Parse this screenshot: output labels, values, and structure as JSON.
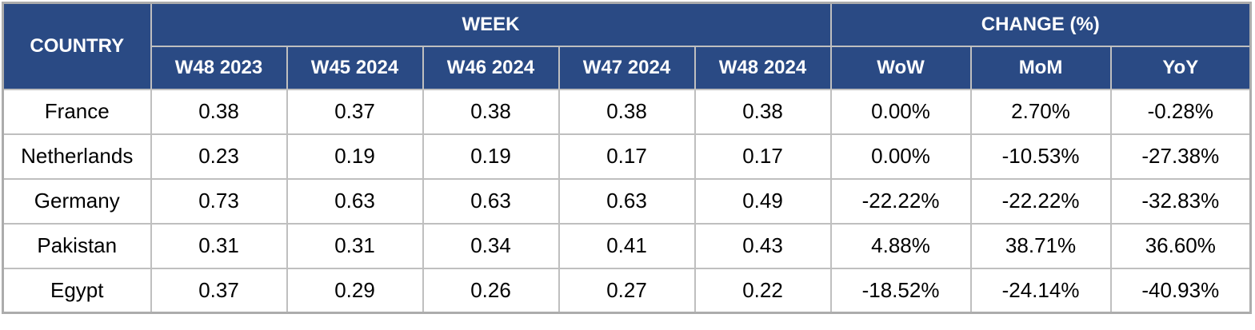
{
  "table": {
    "header": {
      "country": "COUNTRY",
      "week_group": "WEEK",
      "change_group": "CHANGE (%)",
      "week_cols": [
        "W48 2023",
        "W45 2024",
        "W46 2024",
        "W47 2024",
        "W48 2024"
      ],
      "change_cols": [
        "WoW",
        "MoM",
        "YoY"
      ]
    },
    "rows": [
      {
        "country": "France",
        "weeks": [
          "0.38",
          "0.37",
          "0.38",
          "0.38",
          "0.38"
        ],
        "changes": [
          "0.00%",
          "2.70%",
          "-0.28%"
        ]
      },
      {
        "country": "Netherlands",
        "weeks": [
          "0.23",
          "0.19",
          "0.19",
          "0.17",
          "0.17"
        ],
        "changes": [
          "0.00%",
          "-10.53%",
          "-27.38%"
        ]
      },
      {
        "country": "Germany",
        "weeks": [
          "0.73",
          "0.63",
          "0.63",
          "0.63",
          "0.49"
        ],
        "changes": [
          "-22.22%",
          "-22.22%",
          "-32.83%"
        ]
      },
      {
        "country": "Pakistan",
        "weeks": [
          "0.31",
          "0.31",
          "0.34",
          "0.41",
          "0.43"
        ],
        "changes": [
          "4.88%",
          "38.71%",
          "36.60%"
        ]
      },
      {
        "country": "Egypt",
        "weeks": [
          "0.37",
          "0.29",
          "0.26",
          "0.27",
          "0.22"
        ],
        "changes": [
          "-18.52%",
          "-24.14%",
          "-40.93%"
        ]
      }
    ]
  },
  "colors": {
    "header_bg": "#2A4A84",
    "header_text": "#FFFFFF",
    "grid": "#BFBFBF",
    "outer_border": "#ACACAC",
    "text": "#000000"
  },
  "chart_data": {
    "type": "table",
    "title": "",
    "column_groups": [
      {
        "label": "COUNTRY",
        "span": 1
      },
      {
        "label": "WEEK",
        "span": 5
      },
      {
        "label": "CHANGE (%)",
        "span": 3
      }
    ],
    "columns": [
      "COUNTRY",
      "W48 2023",
      "W45 2024",
      "W46 2024",
      "W47 2024",
      "W48 2024",
      "WoW",
      "MoM",
      "YoY"
    ],
    "rows": [
      [
        "France",
        0.38,
        0.37,
        0.38,
        0.38,
        0.38,
        "0.00%",
        "2.70%",
        "-0.28%"
      ],
      [
        "Netherlands",
        0.23,
        0.19,
        0.19,
        0.17,
        0.17,
        "0.00%",
        "-10.53%",
        "-27.38%"
      ],
      [
        "Germany",
        0.73,
        0.63,
        0.63,
        0.63,
        0.49,
        "-22.22%",
        "-22.22%",
        "-32.83%"
      ],
      [
        "Pakistan",
        0.31,
        0.31,
        0.34,
        0.41,
        0.43,
        "4.88%",
        "38.71%",
        "36.60%"
      ],
      [
        "Egypt",
        0.37,
        0.29,
        0.26,
        0.27,
        0.22,
        "-18.52%",
        "-24.14%",
        "-40.93%"
      ]
    ],
    "layout": {
      "grid": true,
      "header_rows": 2,
      "alignment": "center"
    }
  }
}
